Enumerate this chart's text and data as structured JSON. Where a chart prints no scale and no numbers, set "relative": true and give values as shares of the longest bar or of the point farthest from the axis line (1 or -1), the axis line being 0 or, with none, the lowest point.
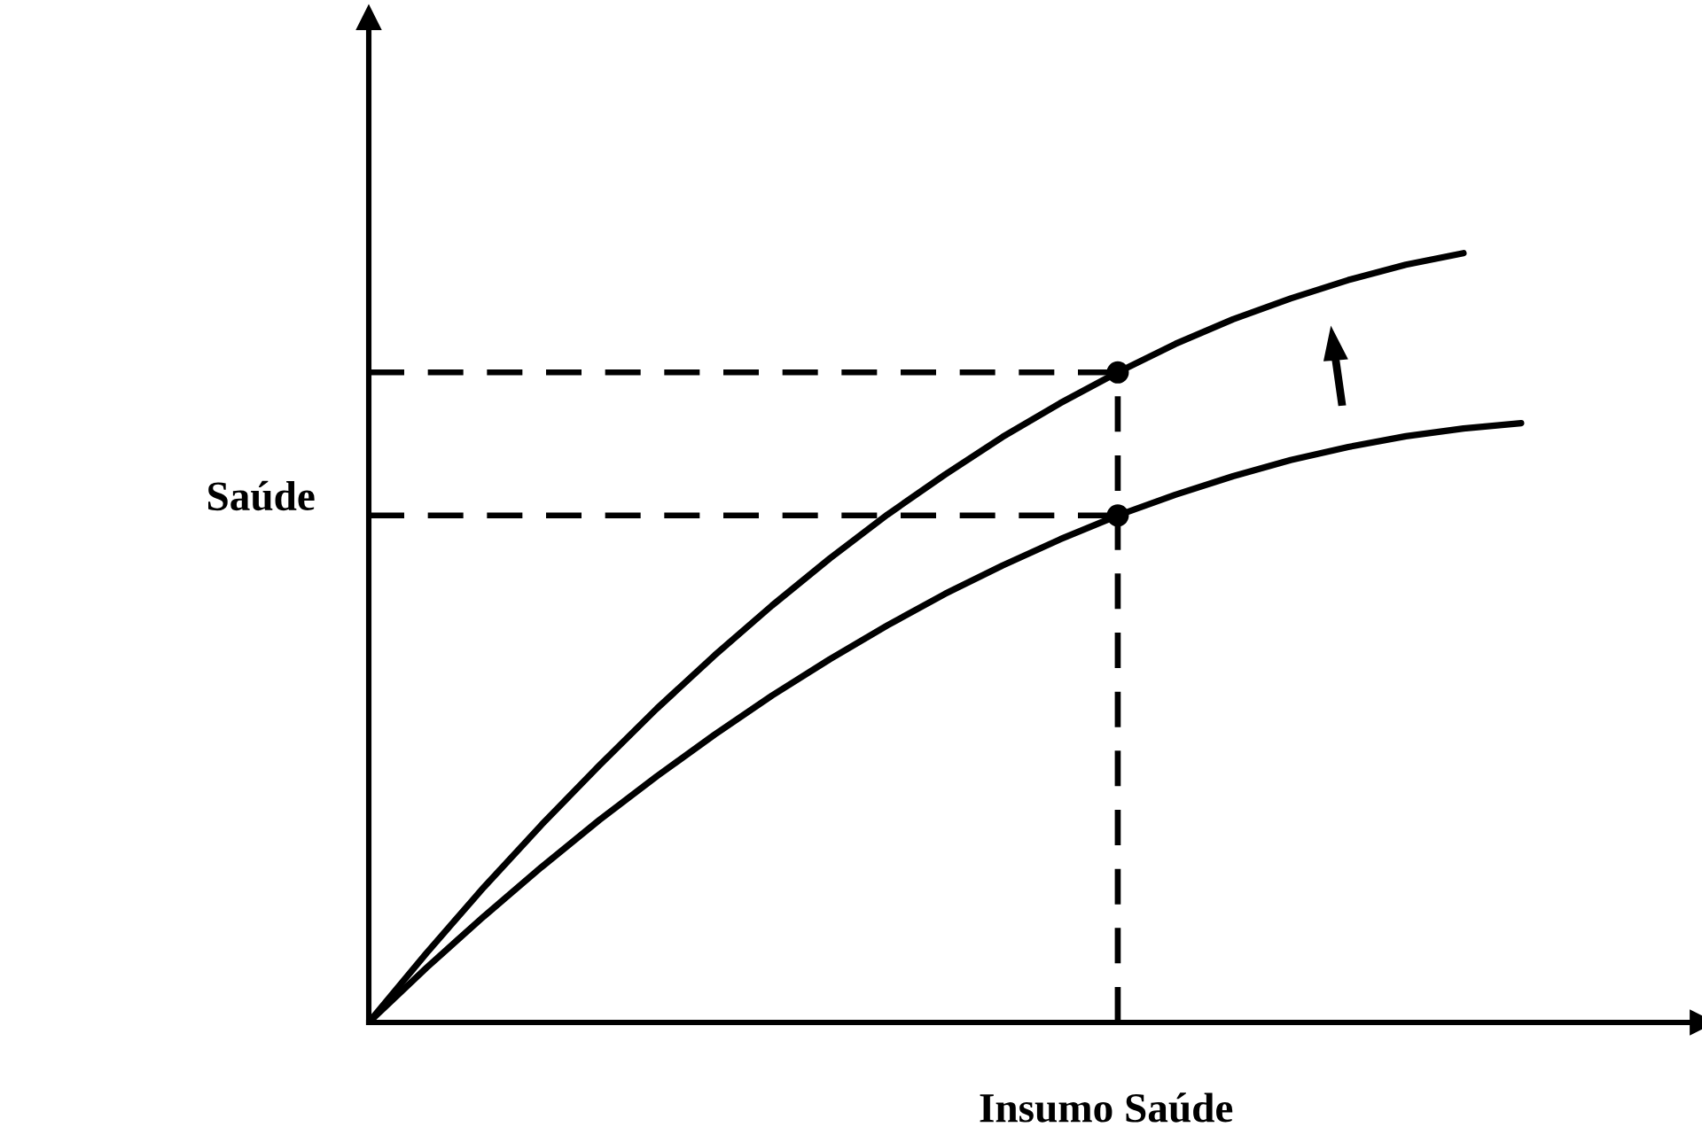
{
  "chart_data": {
    "type": "line",
    "relative": true,
    "xlabel": "Insumo Saúde",
    "ylabel": "Saúde",
    "categories": [
      null,
      null,
      null,
      null,
      null,
      null,
      null,
      null,
      null,
      null,
      null,
      null,
      null,
      null,
      null,
      null,
      null,
      null,
      null,
      null,
      null
    ],
    "series": [
      {
        "color": "#000000",
        "values": [
          0,
          0.09,
          0.176,
          0.257,
          0.334,
          0.408,
          0.477,
          0.542,
          0.603,
          0.66,
          0.712,
          0.761,
          0.805,
          0.845,
          0.882,
          0.914,
          0.941,
          0.965,
          0.985,
          1,
          null
        ]
      },
      {
        "color": "#000000",
        "values": [
          0,
          0.071,
          0.138,
          0.202,
          0.263,
          0.32,
          0.374,
          0.425,
          0.472,
          0.516,
          0.557,
          0.594,
          0.628,
          0.659,
          0.686,
          0.71,
          0.731,
          0.748,
          0.762,
          0.772,
          0.779
        ]
      }
    ],
    "ref_lines": [
      {
        "axis": "y",
        "value": 0.845,
        "color": "#000000",
        "line_style": "dashed"
      },
      {
        "axis": "y",
        "value": 0.659,
        "color": "#000000",
        "line_style": "dashed"
      }
    ],
    "legend": false,
    "marker": "none",
    "line_style": "solid"
  }
}
